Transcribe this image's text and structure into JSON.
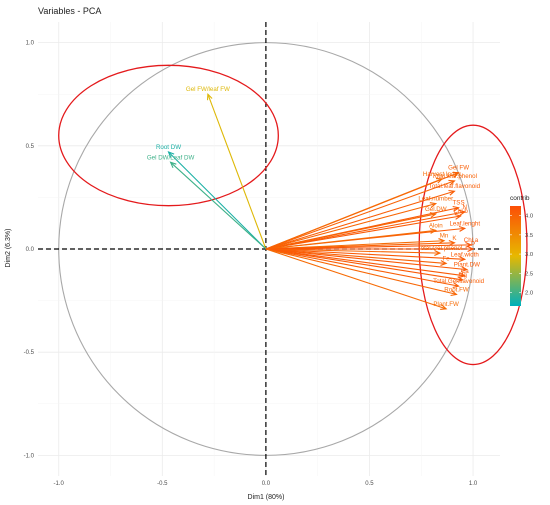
{
  "chart_data": {
    "type": "pca-variables",
    "title": "Variables - PCA",
    "xlabel": "Dim1 (80%)",
    "ylabel": "Dim2 (6.3%)",
    "xlim": [
      -1.1,
      1.13
    ],
    "ylim": [
      -1.1,
      1.1
    ],
    "xticks": [
      -1.0,
      -0.5,
      0.0,
      0.5,
      1.0
    ],
    "yticks": [
      -1.0,
      -0.5,
      0.0,
      0.5,
      1.0
    ],
    "xtick_labels": [
      "-1.0",
      "-0.5",
      "0.0",
      "0.5",
      "1.0"
    ],
    "ytick_labels": [
      "-1.0",
      "-0.5",
      "0.0",
      "0.5",
      "1.0"
    ],
    "grid": true,
    "correlation_circle": true,
    "legend": {
      "title": "contrib",
      "position": "right",
      "min": 1.65,
      "max": 4.25,
      "ticks": [
        2.0,
        2.5,
        3.0,
        3.5,
        4.0
      ],
      "tick_labels": [
        "2.0",
        "2.5",
        "3.0",
        "3.5",
        "4.0"
      ]
    },
    "color_scale": [
      "#00AFBB",
      "#E7B800",
      "#FC4E07"
    ],
    "highlight_ellipses": [
      {
        "cx": -0.47,
        "cy": 0.55,
        "rx": 0.53,
        "ry": 0.34,
        "color": "#E41A1C"
      },
      {
        "cx": 1.0,
        "cy": 0.02,
        "rx": 0.26,
        "ry": 0.58,
        "color": "#E41A1C"
      }
    ],
    "variables": [
      {
        "name": "Gel FW/leaf FW",
        "x": -0.28,
        "y": 0.75,
        "contrib": 2.9
      },
      {
        "name": "Root DW",
        "x": -0.47,
        "y": 0.47,
        "contrib": 1.8
      },
      {
        "name": "Gel DW/Leaf DW",
        "x": -0.46,
        "y": 0.42,
        "contrib": 2.0
      },
      {
        "name": "Gel FW",
        "x": 0.93,
        "y": 0.37,
        "contrib": 4.05
      },
      {
        "name": "Harvest Index",
        "x": 0.85,
        "y": 0.34,
        "contrib": 3.9
      },
      {
        "name": "Total.leaf.phenol",
        "x": 0.91,
        "y": 0.33,
        "contrib": 4.0
      },
      {
        "name": "Total.leaf.flavonoid",
        "x": 0.91,
        "y": 0.28,
        "contrib": 4.05
      },
      {
        "name": "Leaf.number",
        "x": 0.82,
        "y": 0.22,
        "contrib": 3.95
      },
      {
        "name": "TSS",
        "x": 0.93,
        "y": 0.2,
        "contrib": 4.1
      },
      {
        "name": "N",
        "x": 0.96,
        "y": 0.18,
        "contrib": 4.1
      },
      {
        "name": "Gel.DW",
        "x": 0.82,
        "y": 0.17,
        "contrib": 3.95
      },
      {
        "name": "Chl.b",
        "x": 0.94,
        "y": 0.16,
        "contrib": 4.1
      },
      {
        "name": "Leaf.lenght",
        "x": 0.96,
        "y": 0.1,
        "contrib": 4.1
      },
      {
        "name": "Aloin",
        "x": 0.82,
        "y": 0.09,
        "contrib": 3.9
      },
      {
        "name": "Mn",
        "x": 0.86,
        "y": 0.04,
        "contrib": 3.9
      },
      {
        "name": "K",
        "x": 0.91,
        "y": 0.03,
        "contrib": 4.0
      },
      {
        "name": "Chl.a",
        "x": 0.99,
        "y": 0.02,
        "contrib": 4.15
      },
      {
        "name": "P",
        "x": 1.0,
        "y": 0.0,
        "contrib": 4.2
      },
      {
        "name": "Total.Gel.phenol",
        "x": 0.84,
        "y": -0.02,
        "contrib": 3.95
      },
      {
        "name": "Leaf.width",
        "x": 0.96,
        "y": -0.05,
        "contrib": 4.1
      },
      {
        "name": "Fe",
        "x": 0.87,
        "y": -0.07,
        "contrib": 4.0
      },
      {
        "name": "Plant.DW",
        "x": 0.97,
        "y": -0.1,
        "contrib": 4.1
      },
      {
        "name": "Ca",
        "x": 0.96,
        "y": -0.13,
        "contrib": 4.1
      },
      {
        "name": "Mg",
        "x": 0.95,
        "y": -0.15,
        "contrib": 4.1
      },
      {
        "name": "Total.Gel.flavonoid",
        "x": 0.93,
        "y": -0.18,
        "contrib": 4.05
      },
      {
        "name": "Root.FW",
        "x": 0.92,
        "y": -0.22,
        "contrib": 3.95
      },
      {
        "name": "Plant.FW",
        "x": 0.87,
        "y": -0.29,
        "contrib": 3.9
      }
    ]
  }
}
